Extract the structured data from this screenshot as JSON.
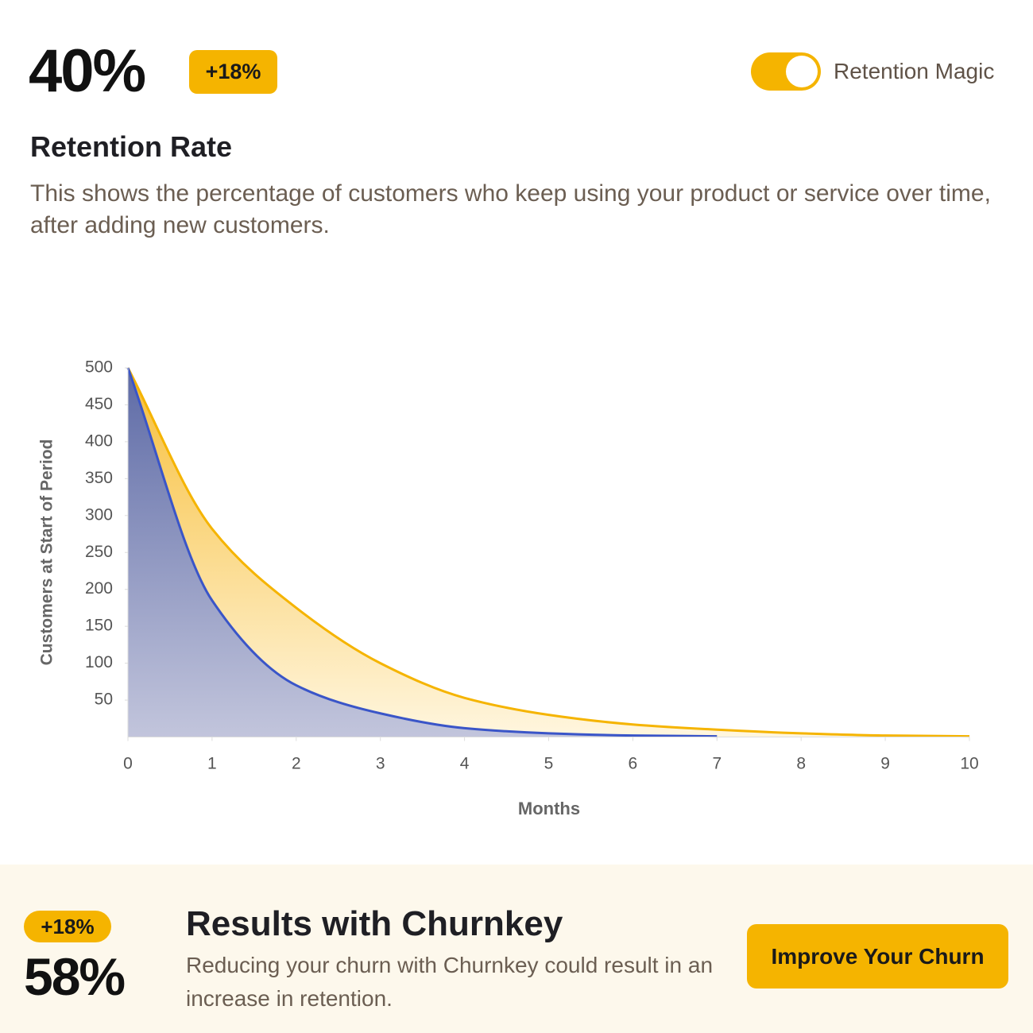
{
  "header": {
    "value": "40%",
    "badge": "+18%",
    "toggle_label": "Retention Magic",
    "title": "Retention Rate",
    "description": "This shows the percentage of customers who keep using your product or service over time, after adding new customers."
  },
  "chart_data": {
    "type": "area",
    "x_label": "Months",
    "y_label": "Customers at Start of Period",
    "x": [
      0,
      1,
      2,
      3,
      4,
      5,
      6,
      7,
      8,
      9,
      10
    ],
    "series": [
      {
        "color": "#f5b400",
        "values": [
          500,
          282,
          175,
          100,
          53,
          30,
          17,
          10,
          5,
          2,
          1
        ]
      },
      {
        "color": "#3a55c8",
        "values": [
          500,
          185,
          70,
          32,
          12,
          5,
          2,
          1,
          null,
          null,
          null
        ]
      }
    ],
    "xlim": [
      0,
      10
    ],
    "xticks": [
      0,
      1,
      2,
      3,
      4,
      5,
      6,
      7,
      8,
      9,
      10
    ],
    "ylim": [
      0,
      500
    ],
    "yticks": [
      50,
      100,
      150,
      200,
      250,
      300,
      350,
      400,
      450,
      500
    ]
  },
  "footer": {
    "badge": "+18%",
    "value": "58%",
    "title": "Results with Churnkey",
    "description": "Reducing your churn with Churnkey could result in an increase in retention.",
    "button": "Improve Your Churn"
  }
}
